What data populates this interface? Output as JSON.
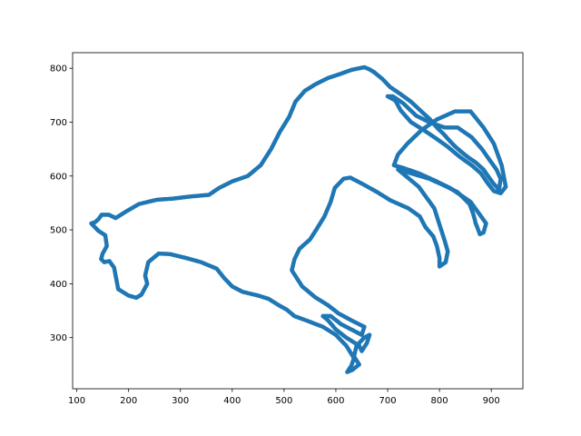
{
  "chart_data": {
    "type": "scatter",
    "title": "",
    "xlabel": "",
    "ylabel": "",
    "xlim": [
      92,
      961
    ],
    "ylim": [
      205,
      829
    ],
    "xticks": [
      100,
      200,
      300,
      400,
      500,
      600,
      700,
      800,
      900
    ],
    "yticks": [
      300,
      400,
      500,
      600,
      700,
      800
    ],
    "xtick_labels": [
      "100",
      "200",
      "300",
      "400",
      "500",
      "600",
      "700",
      "800",
      "900"
    ],
    "ytick_labels": [
      "300",
      "400",
      "500",
      "600",
      "700",
      "800"
    ],
    "grid": false,
    "legend": "none",
    "series": [
      {
        "color": "#1f77b4",
        "marker": "circle",
        "points": [
          [
            655,
            802
          ],
          [
            630,
            797
          ],
          [
            610,
            790
          ],
          [
            585,
            782
          ],
          [
            560,
            770
          ],
          [
            540,
            758
          ],
          [
            522,
            738
          ],
          [
            510,
            710
          ],
          [
            492,
            682
          ],
          [
            475,
            650
          ],
          [
            455,
            620
          ],
          [
            430,
            600
          ],
          [
            400,
            590
          ],
          [
            375,
            578
          ],
          [
            355,
            565
          ],
          [
            320,
            562
          ],
          [
            285,
            558
          ],
          [
            255,
            556
          ],
          [
            220,
            548
          ],
          [
            195,
            534
          ],
          [
            175,
            522
          ],
          [
            162,
            528
          ],
          [
            148,
            528
          ],
          [
            142,
            520
          ],
          [
            135,
            514
          ],
          [
            128,
            512
          ],
          [
            142,
            498
          ],
          [
            155,
            490
          ],
          [
            158,
            470
          ],
          [
            150,
            456
          ],
          [
            147,
            446
          ],
          [
            153,
            440
          ],
          [
            163,
            442
          ],
          [
            172,
            430
          ],
          [
            175,
            415
          ],
          [
            180,
            390
          ],
          [
            200,
            378
          ],
          [
            215,
            374
          ],
          [
            225,
            380
          ],
          [
            236,
            400
          ],
          [
            232,
            415
          ],
          [
            238,
            440
          ],
          [
            258,
            456
          ],
          [
            280,
            455
          ],
          [
            310,
            448
          ],
          [
            340,
            440
          ],
          [
            370,
            428
          ],
          [
            385,
            410
          ],
          [
            400,
            395
          ],
          [
            420,
            385
          ],
          [
            450,
            378
          ],
          [
            470,
            372
          ],
          [
            490,
            360
          ],
          [
            505,
            352
          ],
          [
            520,
            340
          ],
          [
            548,
            330
          ],
          [
            575,
            320
          ],
          [
            600,
            305
          ],
          [
            620,
            285
          ],
          [
            635,
            262
          ],
          [
            630,
            248
          ],
          [
            622,
            236
          ],
          [
            632,
            240
          ],
          [
            645,
            250
          ],
          [
            635,
            265
          ],
          [
            640,
            285
          ],
          [
            655,
            300
          ],
          [
            665,
            305
          ],
          [
            660,
            290
          ],
          [
            650,
            275
          ],
          [
            645,
            285
          ],
          [
            620,
            300
          ],
          [
            600,
            315
          ],
          [
            585,
            332
          ],
          [
            575,
            340
          ],
          [
            590,
            340
          ],
          [
            610,
            325
          ],
          [
            630,
            315
          ],
          [
            650,
            305
          ],
          [
            655,
            320
          ],
          [
            630,
            332
          ],
          [
            605,
            345
          ],
          [
            585,
            360
          ],
          [
            560,
            375
          ],
          [
            535,
            395
          ],
          [
            515,
            425
          ],
          [
            520,
            445
          ],
          [
            530,
            465
          ],
          [
            550,
            482
          ],
          [
            562,
            500
          ],
          [
            578,
            525
          ],
          [
            590,
            552
          ],
          [
            598,
            578
          ],
          [
            615,
            595
          ],
          [
            628,
            597
          ],
          [
            652,
            585
          ],
          [
            680,
            570
          ],
          [
            705,
            555
          ],
          [
            740,
            540
          ],
          [
            762,
            525
          ],
          [
            773,
            505
          ],
          [
            788,
            488
          ],
          [
            795,
            470
          ],
          [
            800,
            448
          ],
          [
            800,
            432
          ],
          [
            812,
            440
          ],
          [
            816,
            460
          ],
          [
            810,
            480
          ],
          [
            800,
            510
          ],
          [
            790,
            540
          ],
          [
            775,
            560
          ],
          [
            760,
            580
          ],
          [
            720,
            612
          ],
          [
            745,
            605
          ],
          [
            780,
            595
          ],
          [
            810,
            582
          ],
          [
            835,
            570
          ],
          [
            858,
            548
          ],
          [
            865,
            530
          ],
          [
            870,
            512
          ],
          [
            878,
            492
          ],
          [
            885,
            495
          ],
          [
            890,
            512
          ],
          [
            875,
            532
          ],
          [
            860,
            552
          ],
          [
            845,
            562
          ],
          [
            820,
            578
          ],
          [
            790,
            592
          ],
          [
            760,
            605
          ],
          [
            730,
            615
          ],
          [
            712,
            620
          ],
          [
            720,
            640
          ],
          [
            738,
            660
          ],
          [
            765,
            685
          ],
          [
            795,
            705
          ],
          [
            830,
            720
          ],
          [
            860,
            720
          ],
          [
            885,
            690
          ],
          [
            905,
            660
          ],
          [
            920,
            620
          ],
          [
            928,
            580
          ],
          [
            918,
            568
          ],
          [
            905,
            572
          ],
          [
            892,
            588
          ],
          [
            880,
            605
          ],
          [
            862,
            620
          ],
          [
            840,
            635
          ],
          [
            815,
            655
          ],
          [
            790,
            672
          ],
          [
            770,
            685
          ],
          [
            745,
            700
          ],
          [
            725,
            722
          ],
          [
            715,
            740
          ],
          [
            700,
            748
          ],
          [
            710,
            748
          ],
          [
            730,
            735
          ],
          [
            755,
            712
          ],
          [
            780,
            700
          ],
          [
            810,
            690
          ],
          [
            835,
            690
          ],
          [
            862,
            672
          ],
          [
            882,
            650
          ],
          [
            898,
            628
          ],
          [
            910,
            612
          ],
          [
            918,
            595
          ],
          [
            915,
            575
          ],
          [
            905,
            585
          ],
          [
            895,
            598
          ],
          [
            885,
            612
          ],
          [
            870,
            625
          ],
          [
            855,
            635
          ],
          [
            842,
            645
          ],
          [
            830,
            655
          ],
          [
            820,
            665
          ],
          [
            808,
            678
          ],
          [
            795,
            690
          ],
          [
            782,
            705
          ],
          [
            765,
            720
          ],
          [
            745,
            738
          ],
          [
            725,
            752
          ],
          [
            705,
            765
          ],
          [
            690,
            780
          ],
          [
            675,
            792
          ],
          [
            665,
            798
          ]
        ]
      }
    ]
  }
}
